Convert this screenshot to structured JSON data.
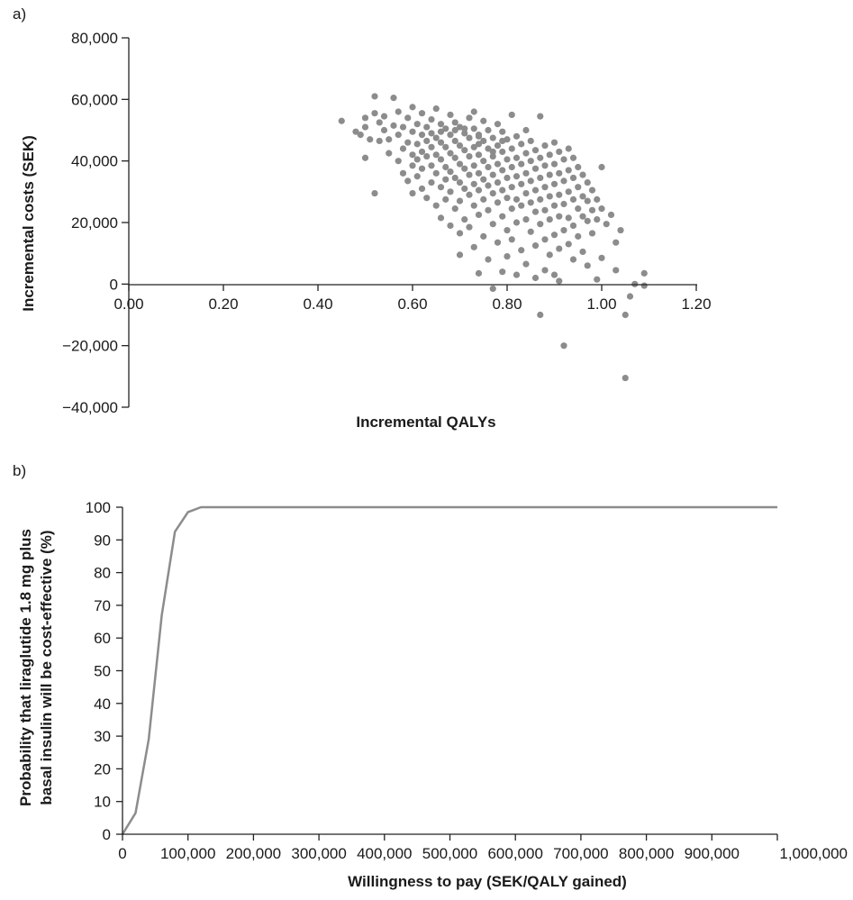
{
  "chart_data": [
    {
      "type": "scatter",
      "panel_label": "a)",
      "title": "",
      "xlabel": "Incremental QALYs",
      "ylabel": "Incremental costs (SEK)",
      "xlim": [
        0,
        1.2
      ],
      "ylim": [
        -40000,
        80000
      ],
      "x_ticks": [
        {
          "value": 0.0,
          "label": "0.00"
        },
        {
          "value": 0.2,
          "label": "0.20"
        },
        {
          "value": 0.4,
          "label": "0.40"
        },
        {
          "value": 0.6,
          "label": "0.60"
        },
        {
          "value": 0.8,
          "label": "0.80"
        },
        {
          "value": 1.0,
          "label": "1.00"
        },
        {
          "value": 1.2,
          "label": "1.20"
        }
      ],
      "y_ticks": [
        {
          "value": 80000,
          "label": "80,000"
        },
        {
          "value": 60000,
          "label": "60,000"
        },
        {
          "value": 40000,
          "label": "40,000"
        },
        {
          "value": 20000,
          "label": "20,000"
        },
        {
          "value": 0,
          "label": "0"
        },
        {
          "value": -20000,
          "label": "−20,000"
        },
        {
          "value": -40000,
          "label": "−40,000"
        }
      ],
      "marker_color": "#8c8c8c",
      "grid": false,
      "points": [
        [
          0.45,
          53000
        ],
        [
          0.48,
          49500
        ],
        [
          0.49,
          48500
        ],
        [
          0.5,
          51000
        ],
        [
          0.5,
          54000
        ],
        [
          0.5,
          41000
        ],
        [
          0.51,
          47000
        ],
        [
          0.52,
          55500
        ],
        [
          0.52,
          61000
        ],
        [
          0.52,
          29500
        ],
        [
          0.53,
          52500
        ],
        [
          0.53,
          46500
        ],
        [
          0.54,
          50000
        ],
        [
          0.54,
          54500
        ],
        [
          0.55,
          47000
        ],
        [
          0.55,
          42500
        ],
        [
          0.56,
          60500
        ],
        [
          0.56,
          51500
        ],
        [
          0.57,
          56000
        ],
        [
          0.57,
          40000
        ],
        [
          0.57,
          48500
        ],
        [
          0.58,
          44000
        ],
        [
          0.58,
          36000
        ],
        [
          0.58,
          51000
        ],
        [
          0.59,
          54000
        ],
        [
          0.59,
          46000
        ],
        [
          0.59,
          33500
        ],
        [
          0.6,
          49500
        ],
        [
          0.6,
          42000
        ],
        [
          0.6,
          57500
        ],
        [
          0.6,
          38500
        ],
        [
          0.6,
          29500
        ],
        [
          0.61,
          52000
        ],
        [
          0.61,
          45500
        ],
        [
          0.61,
          40500
        ],
        [
          0.61,
          35000
        ],
        [
          0.62,
          55500
        ],
        [
          0.62,
          48500
        ],
        [
          0.62,
          43000
        ],
        [
          0.62,
          37500
        ],
        [
          0.62,
          31000
        ],
        [
          0.63,
          51000
        ],
        [
          0.63,
          46500
        ],
        [
          0.63,
          41500
        ],
        [
          0.63,
          28000
        ],
        [
          0.64,
          53500
        ],
        [
          0.64,
          49000
        ],
        [
          0.64,
          44500
        ],
        [
          0.64,
          38500
        ],
        [
          0.64,
          33000
        ],
        [
          0.65,
          57000
        ],
        [
          0.65,
          47500
        ],
        [
          0.65,
          42000
        ],
        [
          0.65,
          36000
        ],
        [
          0.65,
          25500
        ],
        [
          0.66,
          52000
        ],
        [
          0.66,
          46000
        ],
        [
          0.66,
          40500
        ],
        [
          0.66,
          31500
        ],
        [
          0.66,
          21500
        ],
        [
          0.67,
          50500
        ],
        [
          0.67,
          44500
        ],
        [
          0.67,
          38000
        ],
        [
          0.67,
          34000
        ],
        [
          0.67,
          27500
        ],
        [
          0.68,
          55000
        ],
        [
          0.68,
          48500
        ],
        [
          0.68,
          42500
        ],
        [
          0.68,
          36500
        ],
        [
          0.68,
          30000
        ],
        [
          0.68,
          19000
        ],
        [
          0.69,
          52500
        ],
        [
          0.69,
          46500
        ],
        [
          0.69,
          41000
        ],
        [
          0.69,
          34500
        ],
        [
          0.69,
          24500
        ],
        [
          0.7,
          51000
        ],
        [
          0.7,
          45000
        ],
        [
          0.7,
          39000
        ],
        [
          0.7,
          33000
        ],
        [
          0.7,
          27000
        ],
        [
          0.7,
          16500
        ],
        [
          0.7,
          9500
        ],
        [
          0.71,
          49000
        ],
        [
          0.71,
          43500
        ],
        [
          0.71,
          37500
        ],
        [
          0.71,
          31000
        ],
        [
          0.71,
          21000
        ],
        [
          0.72,
          54000
        ],
        [
          0.72,
          47500
        ],
        [
          0.72,
          41500
        ],
        [
          0.72,
          35500
        ],
        [
          0.72,
          29000
        ],
        [
          0.72,
          18500
        ],
        [
          0.73,
          56000
        ],
        [
          0.73,
          50500
        ],
        [
          0.73,
          44500
        ],
        [
          0.73,
          38500
        ],
        [
          0.73,
          32500
        ],
        [
          0.73,
          25500
        ],
        [
          0.73,
          12000
        ],
        [
          0.74,
          48000
        ],
        [
          0.74,
          42000
        ],
        [
          0.74,
          36000
        ],
        [
          0.74,
          30500
        ],
        [
          0.74,
          22500
        ],
        [
          0.74,
          3500
        ],
        [
          0.75,
          53000
        ],
        [
          0.75,
          46500
        ],
        [
          0.75,
          40000
        ],
        [
          0.75,
          34000
        ],
        [
          0.75,
          27500
        ],
        [
          0.75,
          15500
        ],
        [
          0.76,
          50000
        ],
        [
          0.76,
          44000
        ],
        [
          0.76,
          38000
        ],
        [
          0.76,
          32000
        ],
        [
          0.76,
          24000
        ],
        [
          0.76,
          8000
        ],
        [
          0.77,
          47500
        ],
        [
          0.77,
          41500
        ],
        [
          0.77,
          35500
        ],
        [
          0.77,
          29500
        ],
        [
          0.77,
          19500
        ],
        [
          0.77,
          -1500
        ],
        [
          0.78,
          52000
        ],
        [
          0.78,
          45000
        ],
        [
          0.78,
          39000
        ],
        [
          0.78,
          33000
        ],
        [
          0.78,
          26500
        ],
        [
          0.78,
          13500
        ],
        [
          0.79,
          49500
        ],
        [
          0.79,
          43000
        ],
        [
          0.79,
          37000
        ],
        [
          0.79,
          30500
        ],
        [
          0.79,
          22000
        ],
        [
          0.79,
          4000
        ],
        [
          0.8,
          47000
        ],
        [
          0.8,
          40500
        ],
        [
          0.8,
          34500
        ],
        [
          0.8,
          28000
        ],
        [
          0.8,
          17500
        ],
        [
          0.8,
          9000
        ],
        [
          0.81,
          55000
        ],
        [
          0.81,
          44000
        ],
        [
          0.81,
          38000
        ],
        [
          0.81,
          31500
        ],
        [
          0.81,
          24500
        ],
        [
          0.81,
          14500
        ],
        [
          0.82,
          48000
        ],
        [
          0.82,
          41000
        ],
        [
          0.82,
          35000
        ],
        [
          0.82,
          27500
        ],
        [
          0.82,
          20000
        ],
        [
          0.82,
          3000
        ],
        [
          0.83,
          45500
        ],
        [
          0.83,
          39000
        ],
        [
          0.83,
          32500
        ],
        [
          0.83,
          25500
        ],
        [
          0.83,
          11000
        ],
        [
          0.84,
          50000
        ],
        [
          0.84,
          42500
        ],
        [
          0.84,
          36000
        ],
        [
          0.84,
          29500
        ],
        [
          0.84,
          21000
        ],
        [
          0.84,
          6500
        ],
        [
          0.85,
          46500
        ],
        [
          0.85,
          40000
        ],
        [
          0.85,
          33500
        ],
        [
          0.85,
          26500
        ],
        [
          0.85,
          17000
        ],
        [
          0.86,
          43500
        ],
        [
          0.86,
          37500
        ],
        [
          0.86,
          30500
        ],
        [
          0.86,
          23500
        ],
        [
          0.86,
          12500
        ],
        [
          0.86,
          2000
        ],
        [
          0.87,
          54500
        ],
        [
          0.87,
          41000
        ],
        [
          0.87,
          34500
        ],
        [
          0.87,
          27500
        ],
        [
          0.87,
          19500
        ],
        [
          0.87,
          -10000
        ],
        [
          0.88,
          45000
        ],
        [
          0.88,
          38500
        ],
        [
          0.88,
          31500
        ],
        [
          0.88,
          24000
        ],
        [
          0.88,
          14500
        ],
        [
          0.88,
          4500
        ],
        [
          0.89,
          42000
        ],
        [
          0.89,
          35500
        ],
        [
          0.89,
          28500
        ],
        [
          0.89,
          21000
        ],
        [
          0.89,
          9500
        ],
        [
          0.9,
          46000
        ],
        [
          0.9,
          39000
        ],
        [
          0.9,
          32500
        ],
        [
          0.9,
          25500
        ],
        [
          0.9,
          16000
        ],
        [
          0.9,
          3000
        ],
        [
          0.91,
          43000
        ],
        [
          0.91,
          36000
        ],
        [
          0.91,
          29000
        ],
        [
          0.91,
          22000
        ],
        [
          0.91,
          11500
        ],
        [
          0.91,
          1000
        ],
        [
          0.92,
          40500
        ],
        [
          0.92,
          33500
        ],
        [
          0.92,
          26000
        ],
        [
          0.92,
          17500
        ],
        [
          0.92,
          -20000
        ],
        [
          0.93,
          44000
        ],
        [
          0.93,
          37000
        ],
        [
          0.93,
          30000
        ],
        [
          0.93,
          21500
        ],
        [
          0.93,
          13000
        ],
        [
          0.94,
          41000
        ],
        [
          0.94,
          34500
        ],
        [
          0.94,
          27500
        ],
        [
          0.94,
          19000
        ],
        [
          0.94,
          8000
        ],
        [
          0.95,
          38000
        ],
        [
          0.95,
          31500
        ],
        [
          0.95,
          24500
        ],
        [
          0.95,
          15500
        ],
        [
          0.96,
          35500
        ],
        [
          0.96,
          28500
        ],
        [
          0.96,
          22000
        ],
        [
          0.96,
          10500
        ],
        [
          0.97,
          33000
        ],
        [
          0.97,
          27000
        ],
        [
          0.97,
          20500
        ],
        [
          0.97,
          6000
        ],
        [
          0.98,
          30500
        ],
        [
          0.98,
          24000
        ],
        [
          0.98,
          16500
        ],
        [
          0.99,
          27500
        ],
        [
          0.99,
          21000
        ],
        [
          0.99,
          1500
        ],
        [
          1.0,
          38000
        ],
        [
          1.0,
          24500
        ],
        [
          1.0,
          8500
        ],
        [
          1.01,
          19500
        ],
        [
          1.02,
          22500
        ],
        [
          1.03,
          13500
        ],
        [
          1.03,
          4500
        ],
        [
          1.04,
          17500
        ],
        [
          1.05,
          -30500
        ],
        [
          1.05,
          -10000
        ],
        [
          1.06,
          -4000
        ],
        [
          1.07,
          0
        ],
        [
          1.09,
          3500
        ],
        [
          1.09,
          -500
        ],
        [
          0.74,
          48500
        ],
        [
          0.74,
          45500
        ],
        [
          0.71,
          50500
        ],
        [
          0.69,
          50000
        ],
        [
          0.66,
          49500
        ],
        [
          0.77,
          43000
        ],
        [
          0.79,
          46500
        ]
      ]
    },
    {
      "type": "line",
      "panel_label": "b)",
      "title": "",
      "xlabel": "Willingness to pay (SEK/QALY gained)",
      "ylabel_line1": "Probability that liraglutide 1.8 mg plus",
      "ylabel_line2": "basal insulin will be cost-effective (%)",
      "xlim": [
        0,
        1000000
      ],
      "ylim": [
        0,
        100
      ],
      "x_ticks": [
        {
          "value": 0,
          "label": "0"
        },
        {
          "value": 100000,
          "label": "100,000"
        },
        {
          "value": 200000,
          "label": "200,000"
        },
        {
          "value": 300000,
          "label": "300,000"
        },
        {
          "value": 400000,
          "label": "400,000"
        },
        {
          "value": 500000,
          "label": "500,000"
        },
        {
          "value": 600000,
          "label": "600,000"
        },
        {
          "value": 700000,
          "label": "700,000"
        },
        {
          "value": 800000,
          "label": "800,000"
        },
        {
          "value": 900000,
          "label": "900,000"
        },
        {
          "value": 1000000,
          "label": "1,000,000"
        }
      ],
      "y_ticks": [
        {
          "value": 100,
          "label": "100"
        },
        {
          "value": 90,
          "label": "90"
        },
        {
          "value": 80,
          "label": "80"
        },
        {
          "value": 70,
          "label": "70"
        },
        {
          "value": 60,
          "label": "60"
        },
        {
          "value": 50,
          "label": "50"
        },
        {
          "value": 40,
          "label": "40"
        },
        {
          "value": 30,
          "label": "30"
        },
        {
          "value": 20,
          "label": "20"
        },
        {
          "value": 10,
          "label": "10"
        },
        {
          "value": 0,
          "label": "0"
        }
      ],
      "line_color": "#8c8c8c",
      "grid": false,
      "x": [
        0,
        20000,
        40000,
        60000,
        80000,
        100000,
        120000,
        1000000
      ],
      "y": [
        0,
        6.5,
        29,
        67,
        92.5,
        98.5,
        100,
        100
      ]
    }
  ]
}
